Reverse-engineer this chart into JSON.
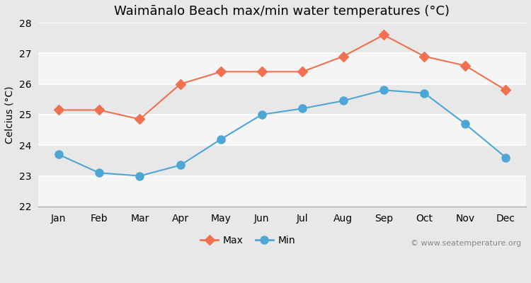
{
  "title": "Waimānalo Beach max/min water temperatures (°C)",
  "ylabel": "Celcius (°C)",
  "months": [
    "Jan",
    "Feb",
    "Mar",
    "Apr",
    "May",
    "Jun",
    "Jul",
    "Aug",
    "Sep",
    "Oct",
    "Nov",
    "Dec"
  ],
  "max_temps": [
    25.15,
    25.15,
    24.85,
    26.0,
    26.4,
    26.4,
    26.4,
    26.9,
    27.6,
    26.9,
    26.6,
    25.8
  ],
  "min_temps": [
    23.7,
    23.1,
    23.0,
    23.35,
    24.2,
    25.0,
    25.2,
    25.45,
    25.8,
    25.7,
    24.7,
    23.6
  ],
  "max_color": "#f07050",
  "min_color": "#4da6d6",
  "fig_bg_color": "#e8e8e8",
  "plot_bg_color": "#efefef",
  "band_color_light": "#f5f5f5",
  "band_color_dark": "#e8e8e8",
  "ylim": [
    22,
    28
  ],
  "yticks": [
    22,
    23,
    24,
    25,
    26,
    27,
    28
  ],
  "watermark": "© www.seatemperature.org",
  "legend_labels": [
    "Max",
    "Min"
  ],
  "title_fontsize": 13,
  "label_fontsize": 10,
  "tick_fontsize": 10,
  "marker_size_max": 7,
  "marker_size_min": 8,
  "line_width": 1.5
}
